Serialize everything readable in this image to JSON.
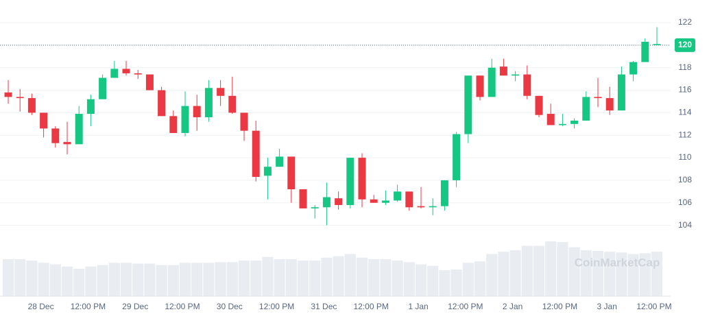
{
  "chart_data": {
    "type": "candlestick",
    "categories": [
      null,
      null,
      null,
      "28 Dec",
      null,
      null,
      null,
      "12:00 PM",
      null,
      null,
      null,
      "29 Dec",
      null,
      null,
      null,
      "12:00 PM",
      null,
      null,
      null,
      "30 Dec",
      null,
      null,
      null,
      "12:00 PM",
      null,
      null,
      null,
      "31 Dec",
      null,
      null,
      null,
      "12:00 PM",
      null,
      null,
      null,
      "1 Jan",
      null,
      null,
      null,
      "12:00 PM",
      null,
      null,
      null,
      "2 Jan",
      null,
      null,
      null,
      "12:00 PM",
      null,
      null,
      null,
      "3 Jan",
      null,
      null,
      null,
      "12:00 PM"
    ],
    "open": [
      115.8,
      115.4,
      115.3,
      114.0,
      112.6,
      111.4,
      111.2,
      113.9,
      115.2,
      117.1,
      117.9,
      117.5,
      117.4,
      116.0,
      113.7,
      112.2,
      114.6,
      113.6,
      116.2,
      115.5,
      114.0,
      112.4,
      108.4,
      109.2,
      110.1,
      107.2,
      105.5,
      105.6,
      106.4,
      105.8,
      110.0,
      106.3,
      106.0,
      106.2,
      107.0,
      105.7,
      105.6,
      105.7,
      108.0,
      112.1,
      117.3,
      115.4,
      118.1,
      117.3,
      117.4,
      115.5,
      113.9,
      112.9,
      113.0,
      113.3,
      115.4,
      115.3,
      114.2,
      117.4,
      118.5,
      120.0
    ],
    "high": [
      116.9,
      116.1,
      115.7,
      114.0,
      112.8,
      113.2,
      114.6,
      115.6,
      117.4,
      118.6,
      118.6,
      117.8,
      117.4,
      116.3,
      114.2,
      115.9,
      115.6,
      116.9,
      116.9,
      117.2,
      114.0,
      113.3,
      110.0,
      110.8,
      110.1,
      107.2,
      105.8,
      107.8,
      107.0,
      110.0,
      110.4,
      106.7,
      107.1,
      107.6,
      107.0,
      107.4,
      106.4,
      108.0,
      112.3,
      117.3,
      117.3,
      118.8,
      118.8,
      117.7,
      118.2,
      115.5,
      114.8,
      113.9,
      113.5,
      115.9,
      117.1,
      116.3,
      118.1,
      118.6,
      120.6,
      121.6
    ],
    "low": [
      114.8,
      114.1,
      113.8,
      111.8,
      110.9,
      110.3,
      111.2,
      112.8,
      115.2,
      117.1,
      117.3,
      117.0,
      116.0,
      113.7,
      112.2,
      111.9,
      112.4,
      113.2,
      114.6,
      113.9,
      111.5,
      107.9,
      106.3,
      109.2,
      106.0,
      105.5,
      104.6,
      104.0,
      105.4,
      105.5,
      105.6,
      106.0,
      105.8,
      106.1,
      105.3,
      105.5,
      104.9,
      105.3,
      107.4,
      111.3,
      115.1,
      115.4,
      117.3,
      116.8,
      115.2,
      113.6,
      112.9,
      112.8,
      112.6,
      113.3,
      114.5,
      113.8,
      114.2,
      116.8,
      118.5,
      120.0
    ],
    "close": [
      115.4,
      115.3,
      114.0,
      112.6,
      111.3,
      111.2,
      113.9,
      115.2,
      117.1,
      117.9,
      117.5,
      117.4,
      116.0,
      113.7,
      112.2,
      114.6,
      113.6,
      116.2,
      115.5,
      114.0,
      112.4,
      108.3,
      109.2,
      110.1,
      107.2,
      105.5,
      105.6,
      106.5,
      105.8,
      110.0,
      106.3,
      106.0,
      106.2,
      107.0,
      105.6,
      105.6,
      105.7,
      108.0,
      112.1,
      117.3,
      115.4,
      118.0,
      117.3,
      117.4,
      115.5,
      113.8,
      112.9,
      113.0,
      113.3,
      115.4,
      115.3,
      114.2,
      117.4,
      118.5,
      120.3,
      120.1
    ],
    "volume": [
      50,
      50,
      48,
      45,
      43,
      40,
      37,
      40,
      42,
      45,
      45,
      44,
      44,
      42,
      42,
      45,
      45,
      45,
      46,
      46,
      48,
      48,
      53,
      50,
      50,
      48,
      48,
      52,
      54,
      57,
      52,
      50,
      50,
      48,
      46,
      43,
      41,
      35,
      36,
      45,
      47,
      57,
      60,
      62,
      68,
      68,
      74,
      73,
      66,
      62,
      61,
      60,
      59,
      57,
      58,
      60
    ],
    "up_color": "#16c784",
    "down_color": "#ea3943",
    "volume_color": "#e9ecf0",
    "ylim": [
      103,
      123.1
    ],
    "yticks": [
      104,
      106,
      108,
      110,
      112,
      114,
      116,
      118,
      120,
      122
    ],
    "grid": true,
    "current_price": 120,
    "watermark": "CoinMarketCap"
  }
}
